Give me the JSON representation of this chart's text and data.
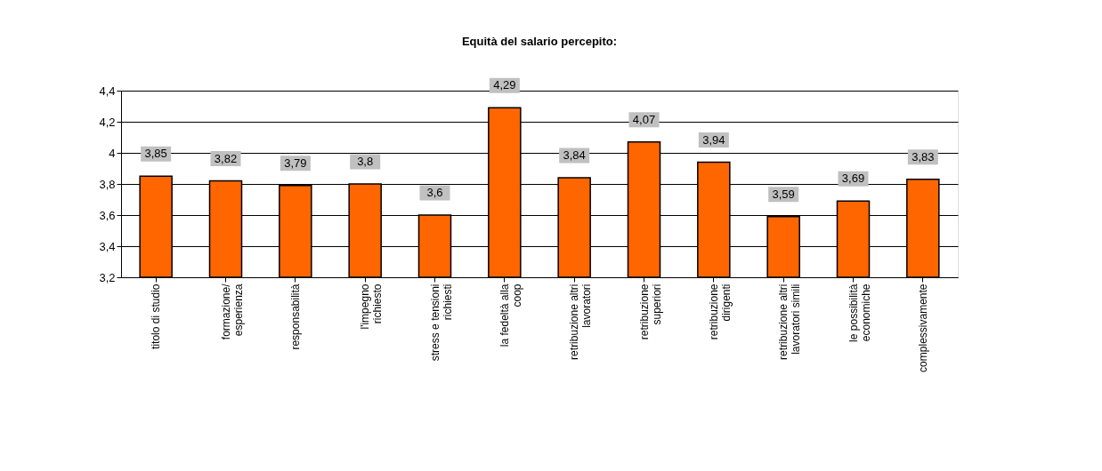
{
  "chart_data": {
    "type": "bar",
    "title": "Equità del salario percepito:",
    "categories": [
      "titolo di studio",
      "formazione/ esperienza",
      "responsabilità",
      "l'impegno richiesto",
      "stress e tensioni richiesti",
      "la fedeltà alla coop",
      "retribuzione altri lavoratori",
      "retribuzione superiori",
      "retribuzione dirigenti",
      "retribuzione altri lavoratori simili",
      "le possibilità economiche",
      "complessivamente"
    ],
    "values": [
      3.85,
      3.82,
      3.79,
      3.8,
      3.6,
      4.29,
      3.84,
      4.07,
      3.94,
      3.59,
      3.69,
      3.83
    ],
    "value_labels": [
      "3,85",
      "3,82",
      "3,79",
      "3,8",
      "3,6",
      "4,29",
      "3,84",
      "4,07",
      "3,94",
      "3,59",
      "3,69",
      "3,83"
    ],
    "color": "#ff6600",
    "ylim": [
      3.2,
      4.4
    ],
    "yticks": [
      {
        "value": 3.2,
        "label": "3,2"
      },
      {
        "value": 3.4,
        "label": "3,4"
      },
      {
        "value": 3.6,
        "label": "3,6"
      },
      {
        "value": 3.8,
        "label": "3,8"
      },
      4,
      {
        "value": 4.2,
        "label": "4,2"
      },
      {
        "value": 4.4,
        "label": "4,4"
      }
    ],
    "grid": "y"
  }
}
